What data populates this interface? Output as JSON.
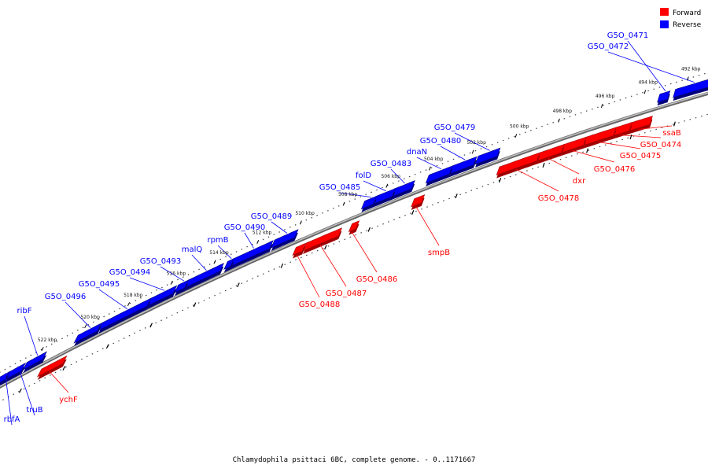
{
  "footer": "Chlamydophila psittaci 6BC, complete genome. - 0..1171667",
  "legend": [
    {
      "label": "Forward",
      "color": "#ff0000"
    },
    {
      "label": "Reverse",
      "color": "#0000ff"
    }
  ],
  "colors": {
    "forward": "#ff0000",
    "reverse": "#0000ff",
    "backbone": "#888888"
  },
  "ticks": [
    "492 kbp",
    "494 kbp",
    "496 kbp",
    "498 kbp",
    "500 kbp",
    "502 kbp",
    "504 kbp",
    "506 kbp",
    "508 kbp",
    "510 kbp",
    "512 kbp",
    "514 kbp",
    "516 kbp",
    "518 kbp",
    "520 kbp",
    "522 kbp"
  ],
  "genes": [
    {
      "label": "G5O_0471",
      "strand": "reverse"
    },
    {
      "label": "G5O_0472",
      "strand": "reverse"
    },
    {
      "label": "ssaB",
      "strand": "forward"
    },
    {
      "label": "G5O_0474",
      "strand": "forward"
    },
    {
      "label": "G5O_0475",
      "strand": "forward"
    },
    {
      "label": "G5O_0476",
      "strand": "forward"
    },
    {
      "label": "dxr",
      "strand": "forward"
    },
    {
      "label": "G5O_0478",
      "strand": "forward"
    },
    {
      "label": "G5O_0479",
      "strand": "reverse"
    },
    {
      "label": "G5O_0480",
      "strand": "reverse"
    },
    {
      "label": "dnaN",
      "strand": "reverse"
    },
    {
      "label": "G5O_0483",
      "strand": "reverse"
    },
    {
      "label": "folD",
      "strand": "reverse"
    },
    {
      "label": "G5O_0485",
      "strand": "reverse"
    },
    {
      "label": "smpB",
      "strand": "forward"
    },
    {
      "label": "G5O_0486",
      "strand": "forward"
    },
    {
      "label": "G5O_0487",
      "strand": "forward"
    },
    {
      "label": "G5O_0488",
      "strand": "forward"
    },
    {
      "label": "G5O_0489",
      "strand": "reverse"
    },
    {
      "label": "G5O_0490",
      "strand": "reverse"
    },
    {
      "label": "rpmB",
      "strand": "reverse"
    },
    {
      "label": "malQ",
      "strand": "reverse"
    },
    {
      "label": "G5O_0493",
      "strand": "reverse"
    },
    {
      "label": "G5O_0494",
      "strand": "reverse"
    },
    {
      "label": "G5O_0495",
      "strand": "reverse"
    },
    {
      "label": "G5O_0496",
      "strand": "reverse"
    },
    {
      "label": "ribF",
      "strand": "reverse"
    },
    {
      "label": "ychF",
      "strand": "forward"
    },
    {
      "label": "truB",
      "strand": "reverse"
    },
    {
      "label": "rbfA",
      "strand": "reverse"
    }
  ]
}
